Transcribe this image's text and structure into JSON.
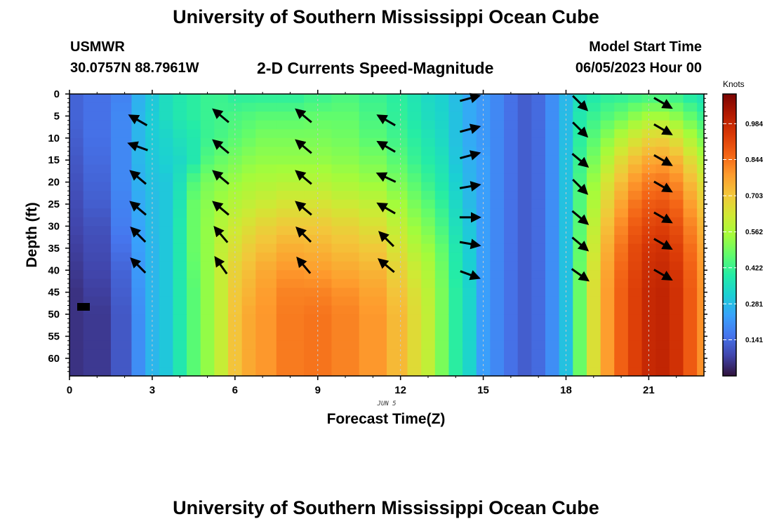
{
  "header": {
    "title": "University of Southern Mississippi Ocean Cube",
    "station_id": "USMWR",
    "station_coords": "30.0757N  88.7961W",
    "subtitle": "2-D Currents Speed-Magnitude",
    "start_label": "Model Start Time",
    "start_value": "06/05/2023 Hour 00"
  },
  "footer": {
    "title": "University of Southern Mississippi Ocean Cube"
  },
  "chart_data": {
    "type": "heatmap",
    "title": "2-D Currents Speed-Magnitude",
    "xlabel": "Forecast Time(Z)",
    "ylabel": "Depth (ft)",
    "date_label": "JUN 5",
    "xlim": [
      0,
      23
    ],
    "ylim": [
      0,
      64
    ],
    "y_inverted": true,
    "x_ticks": [
      0,
      3,
      6,
      9,
      12,
      15,
      18,
      21
    ],
    "y_ticks": [
      0,
      5,
      10,
      15,
      20,
      25,
      30,
      35,
      40,
      45,
      50,
      55,
      60
    ],
    "colorbar": {
      "title": "Knots",
      "range": [
        0,
        1.1
      ],
      "ticks": [
        0.141,
        0.281,
        0.422,
        0.562,
        0.703,
        0.844,
        0.984
      ],
      "tick_labels": [
        "0.141",
        "0.281",
        "0.422",
        "0.562",
        "0.703",
        "0.844",
        "0.984"
      ]
    },
    "speed_profiles_knots": {
      "depths_ft": [
        0,
        5,
        10,
        15,
        20,
        25,
        30,
        35,
        40,
        45,
        50,
        55,
        60,
        64
      ],
      "times_hr": [
        0,
        1,
        2,
        2.5,
        3,
        3.5,
        4,
        4.5,
        5,
        5.5,
        6,
        6.5,
        7,
        8,
        9,
        10,
        11,
        12,
        12.5,
        13,
        13.5,
        14,
        14.5,
        15,
        15.5,
        16,
        16.5,
        17,
        17.5,
        18,
        18.5,
        19,
        19.5,
        20,
        20.5,
        21,
        21.5,
        22,
        22.5,
        23
      ],
      "values": [
        [
          0.13,
          0.13,
          0.12,
          0.11,
          0.1,
          0.09,
          0.08,
          0.07,
          0.06,
          0.05,
          0.05,
          0.05,
          0.05,
          0.05
        ],
        [
          0.15,
          0.15,
          0.15,
          0.14,
          0.13,
          0.12,
          0.1,
          0.09,
          0.08,
          0.07,
          0.06,
          0.06,
          0.06,
          0.06
        ],
        [
          0.18,
          0.19,
          0.19,
          0.19,
          0.19,
          0.18,
          0.17,
          0.15,
          0.13,
          0.12,
          0.11,
          0.11,
          0.11,
          0.11
        ],
        [
          0.26,
          0.27,
          0.27,
          0.27,
          0.26,
          0.25,
          0.24,
          0.23,
          0.22,
          0.21,
          0.2,
          0.2,
          0.2,
          0.2
        ],
        [
          0.3,
          0.31,
          0.31,
          0.3,
          0.29,
          0.28,
          0.28,
          0.27,
          0.27,
          0.27,
          0.27,
          0.27,
          0.27,
          0.27
        ],
        [
          0.35,
          0.35,
          0.33,
          0.32,
          0.3,
          0.3,
          0.3,
          0.3,
          0.3,
          0.3,
          0.3,
          0.3,
          0.3,
          0.3
        ],
        [
          0.38,
          0.38,
          0.36,
          0.34,
          0.36,
          0.37,
          0.38,
          0.38,
          0.38,
          0.38,
          0.38,
          0.38,
          0.38,
          0.38
        ],
        [
          0.4,
          0.4,
          0.38,
          0.38,
          0.45,
          0.48,
          0.48,
          0.48,
          0.47,
          0.46,
          0.46,
          0.46,
          0.46,
          0.46
        ],
        [
          0.42,
          0.42,
          0.42,
          0.45,
          0.5,
          0.52,
          0.53,
          0.53,
          0.53,
          0.53,
          0.53,
          0.53,
          0.53,
          0.53
        ],
        [
          0.42,
          0.43,
          0.44,
          0.48,
          0.52,
          0.55,
          0.58,
          0.6,
          0.61,
          0.61,
          0.61,
          0.61,
          0.61,
          0.61
        ],
        [
          0.4,
          0.44,
          0.46,
          0.5,
          0.54,
          0.58,
          0.62,
          0.65,
          0.68,
          0.7,
          0.71,
          0.71,
          0.71,
          0.71
        ],
        [
          0.4,
          0.45,
          0.48,
          0.52,
          0.56,
          0.6,
          0.65,
          0.69,
          0.72,
          0.74,
          0.76,
          0.76,
          0.76,
          0.76
        ],
        [
          0.4,
          0.46,
          0.5,
          0.53,
          0.57,
          0.62,
          0.68,
          0.72,
          0.76,
          0.78,
          0.79,
          0.79,
          0.79,
          0.79
        ],
        [
          0.4,
          0.46,
          0.5,
          0.53,
          0.58,
          0.64,
          0.7,
          0.75,
          0.79,
          0.82,
          0.83,
          0.83,
          0.83,
          0.83
        ],
        [
          0.42,
          0.47,
          0.5,
          0.53,
          0.58,
          0.64,
          0.7,
          0.74,
          0.78,
          0.82,
          0.84,
          0.84,
          0.84,
          0.84
        ],
        [
          0.44,
          0.47,
          0.49,
          0.52,
          0.56,
          0.62,
          0.68,
          0.72,
          0.76,
          0.8,
          0.82,
          0.82,
          0.82,
          0.82
        ],
        [
          0.42,
          0.44,
          0.46,
          0.5,
          0.54,
          0.6,
          0.65,
          0.7,
          0.74,
          0.77,
          0.79,
          0.79,
          0.79,
          0.79
        ],
        [
          0.4,
          0.41,
          0.43,
          0.46,
          0.5,
          0.55,
          0.6,
          0.64,
          0.68,
          0.71,
          0.73,
          0.73,
          0.73,
          0.73
        ],
        [
          0.37,
          0.38,
          0.4,
          0.42,
          0.46,
          0.5,
          0.54,
          0.58,
          0.62,
          0.65,
          0.66,
          0.66,
          0.66,
          0.66
        ],
        [
          0.34,
          0.35,
          0.37,
          0.39,
          0.42,
          0.46,
          0.5,
          0.54,
          0.57,
          0.59,
          0.6,
          0.6,
          0.6,
          0.6
        ],
        [
          0.32,
          0.33,
          0.34,
          0.36,
          0.38,
          0.41,
          0.44,
          0.47,
          0.49,
          0.5,
          0.5,
          0.5,
          0.5,
          0.5
        ],
        [
          0.28,
          0.29,
          0.29,
          0.3,
          0.32,
          0.34,
          0.36,
          0.38,
          0.39,
          0.4,
          0.4,
          0.4,
          0.4,
          0.4
        ],
        [
          0.25,
          0.25,
          0.25,
          0.26,
          0.27,
          0.28,
          0.3,
          0.31,
          0.32,
          0.33,
          0.33,
          0.33,
          0.33,
          0.33
        ],
        [
          0.22,
          0.22,
          0.22,
          0.23,
          0.23,
          0.23,
          0.23,
          0.23,
          0.23,
          0.23,
          0.23,
          0.23,
          0.23,
          0.23
        ],
        [
          0.19,
          0.19,
          0.19,
          0.19,
          0.19,
          0.19,
          0.19,
          0.19,
          0.19,
          0.19,
          0.19,
          0.19,
          0.19,
          0.19
        ],
        [
          0.15,
          0.15,
          0.15,
          0.15,
          0.15,
          0.15,
          0.15,
          0.15,
          0.15,
          0.15,
          0.15,
          0.15,
          0.15,
          0.15
        ],
        [
          0.12,
          0.12,
          0.12,
          0.12,
          0.12,
          0.12,
          0.12,
          0.12,
          0.12,
          0.12,
          0.12,
          0.12,
          0.12,
          0.12
        ],
        [
          0.14,
          0.14,
          0.14,
          0.14,
          0.14,
          0.14,
          0.14,
          0.14,
          0.14,
          0.14,
          0.14,
          0.14,
          0.14,
          0.14
        ],
        [
          0.2,
          0.2,
          0.2,
          0.2,
          0.2,
          0.2,
          0.2,
          0.2,
          0.2,
          0.2,
          0.2,
          0.2,
          0.2,
          0.2
        ],
        [
          0.27,
          0.28,
          0.28,
          0.29,
          0.29,
          0.29,
          0.29,
          0.29,
          0.29,
          0.29,
          0.29,
          0.29,
          0.29,
          0.29
        ],
        [
          0.35,
          0.38,
          0.4,
          0.42,
          0.44,
          0.45,
          0.46,
          0.47,
          0.48,
          0.48,
          0.48,
          0.48,
          0.48,
          0.48
        ],
        [
          0.38,
          0.42,
          0.46,
          0.5,
          0.54,
          0.57,
          0.6,
          0.62,
          0.64,
          0.65,
          0.65,
          0.65,
          0.65,
          0.65
        ],
        [
          0.4,
          0.45,
          0.52,
          0.58,
          0.64,
          0.68,
          0.72,
          0.75,
          0.77,
          0.78,
          0.78,
          0.78,
          0.78,
          0.78
        ],
        [
          0.4,
          0.48,
          0.58,
          0.66,
          0.72,
          0.77,
          0.81,
          0.84,
          0.86,
          0.87,
          0.87,
          0.87,
          0.87,
          0.87
        ],
        [
          0.41,
          0.52,
          0.63,
          0.72,
          0.79,
          0.84,
          0.88,
          0.91,
          0.92,
          0.93,
          0.93,
          0.93,
          0.93,
          0.93
        ],
        [
          0.42,
          0.55,
          0.67,
          0.76,
          0.83,
          0.88,
          0.92,
          0.95,
          0.97,
          0.98,
          0.98,
          0.98,
          0.98,
          0.98
        ],
        [
          0.42,
          0.55,
          0.68,
          0.77,
          0.84,
          0.89,
          0.93,
          0.96,
          0.98,
          0.99,
          0.99,
          0.99,
          0.99,
          0.99
        ],
        [
          0.41,
          0.52,
          0.64,
          0.74,
          0.81,
          0.86,
          0.9,
          0.93,
          0.95,
          0.96,
          0.96,
          0.96,
          0.96,
          0.96
        ],
        [
          0.38,
          0.47,
          0.57,
          0.66,
          0.73,
          0.78,
          0.82,
          0.85,
          0.87,
          0.88,
          0.88,
          0.88,
          0.88,
          0.88
        ],
        [
          0.36,
          0.42,
          0.5,
          0.58,
          0.65,
          0.7,
          0.74,
          0.77,
          0.79,
          0.8,
          0.8,
          0.8,
          0.8,
          0.8
        ]
      ]
    },
    "vector_columns_hr": [
      2.5,
      5.5,
      8.5,
      11.5,
      14.5,
      18.5,
      21.5
    ],
    "vectors": [
      {
        "t": 2.5,
        "depths": [
          6,
          12,
          19,
          26,
          32,
          39
        ],
        "dir_deg": [
          150,
          160,
          140,
          140,
          135,
          135
        ]
      },
      {
        "t": 5.5,
        "depths": [
          5,
          12,
          19,
          26,
          32,
          39
        ],
        "dir_deg": [
          140,
          140,
          140,
          140,
          130,
          125
        ]
      },
      {
        "t": 8.5,
        "depths": [
          5,
          12,
          19,
          26,
          32,
          39
        ],
        "dir_deg": [
          140,
          140,
          140,
          140,
          135,
          130
        ]
      },
      {
        "t": 11.5,
        "depths": [
          6,
          12,
          19,
          26,
          33,
          39
        ],
        "dir_deg": [
          150,
          150,
          155,
          150,
          135,
          140
        ]
      },
      {
        "t": 14.5,
        "depths": [
          1,
          8,
          14,
          21,
          28,
          34,
          41
        ],
        "dir_deg": [
          15,
          15,
          15,
          10,
          0,
          -10,
          -20
        ]
      },
      {
        "t": 18.5,
        "depths": [
          2,
          8,
          15,
          21,
          28,
          34,
          41
        ],
        "dir_deg": [
          -45,
          -45,
          -40,
          -45,
          -40,
          -40,
          -35
        ]
      },
      {
        "t": 21.5,
        "depths": [
          2,
          8,
          15,
          21,
          28,
          34,
          41
        ],
        "dir_deg": [
          -30,
          -30,
          -30,
          -30,
          -30,
          -30,
          -30
        ]
      }
    ]
  },
  "colors": {
    "colormap": [
      "#30123b",
      "#4145ab",
      "#4675ed",
      "#39a2fc",
      "#1bcfd4",
      "#24eca6",
      "#61fc6c",
      "#a4fc3b",
      "#d1e834",
      "#f3c63a",
      "#fe9b2d",
      "#f36315",
      "#d93806",
      "#b11901",
      "#7a0402"
    ],
    "gridline": "#c8c8c8"
  }
}
